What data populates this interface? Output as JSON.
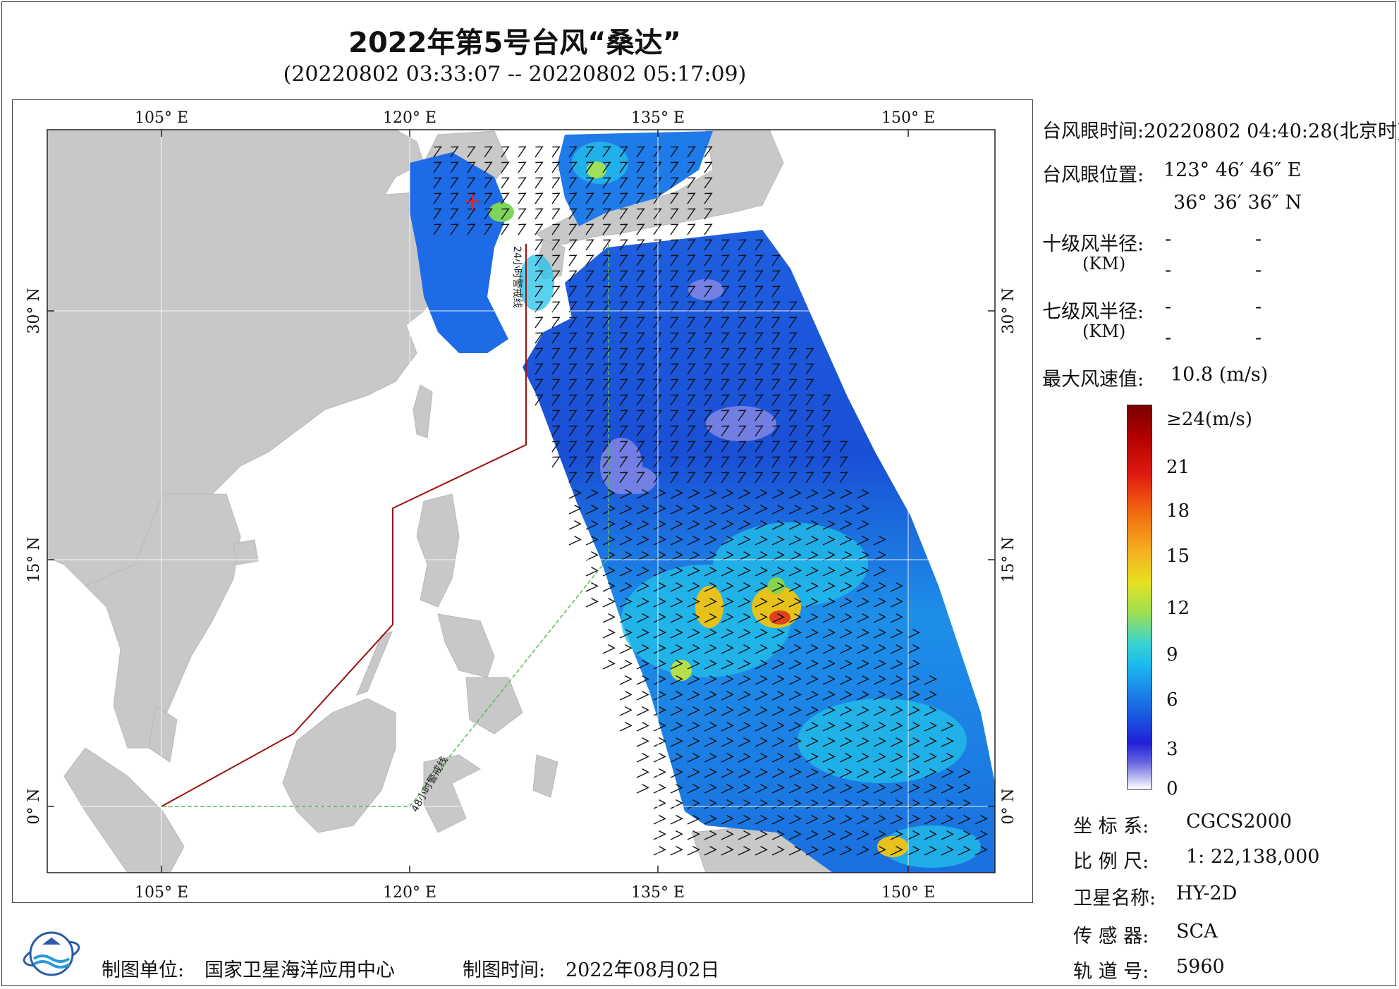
{
  "title": "2022年第5号台风“桑达”",
  "subtitle": "(20220802 03:33:07 -- 20220802 05:17:09)",
  "map": {
    "lon_ticks": [
      "105° E",
      "120° E",
      "135° E",
      "150° E"
    ],
    "lat_ticks": [
      "0° N",
      "15° N",
      "30° N"
    ],
    "line_24h_label": "24小时警戒线",
    "line_48h_label": "48小时警戒线",
    "colors": {
      "land": "#c8c8c8",
      "sea": "#ffffff",
      "line_24h": "#9b1010",
      "line_48h": "#5cb85c",
      "eye_marker": "#e8241c"
    }
  },
  "info": {
    "eye_time": "台风眼时间:20220802 04:40:28(北京时)",
    "eye_pos_label": "台风眼位置:",
    "eye_lon": "123° 46′ 46″ E",
    "eye_lat": "36° 36′ 36″ N",
    "r10_label": "十级风半径:",
    "r10_km": "(KM)",
    "r10_v1": "-",
    "r10_v2": "-",
    "r10_v3": "-",
    "r10_v4": "-",
    "r7_label": "七级风半径:",
    "r7_km": "(KM)",
    "r7_v1": "-",
    "r7_v2": "-",
    "r7_v3": "-",
    "r7_v4": "-",
    "max_wind_label": "最大风速值:",
    "max_wind_value": "10.8  (m/s)"
  },
  "colorbar": {
    "labels": [
      "≥24(m/s)",
      "21",
      "18",
      "15",
      "12",
      "9",
      "6",
      "3",
      "0"
    ]
  },
  "meta": {
    "coord_label": "坐 标 系:",
    "coord_value": "CGCS2000",
    "scale_label": "比 例 尺:",
    "scale_value": "1: 22,138,000",
    "sat_label": "卫星名称:",
    "sat_value": "HY-2D",
    "sensor_label": "传 感 器:",
    "sensor_value": "SCA",
    "orbit_label": "轨 道 号:",
    "orbit_value": "5960"
  },
  "footer": {
    "unit_label": "制图单位:",
    "unit_value": "国家卫星海洋应用中心",
    "time_label": "制图时间:",
    "time_value": "2022年08月02日"
  }
}
